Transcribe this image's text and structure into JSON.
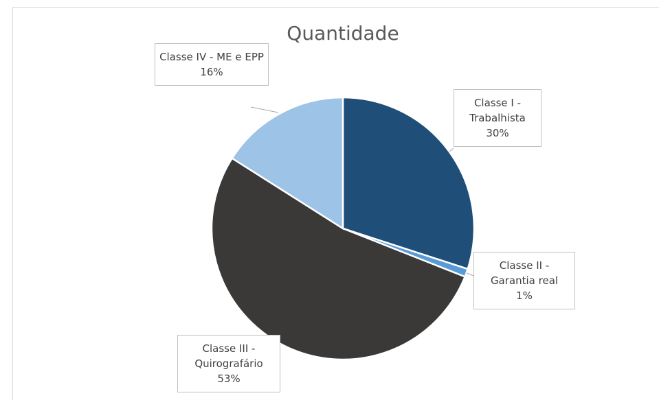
{
  "chart_data": {
    "type": "pie",
    "title": "Quantidade",
    "categories": [
      "Classe I - Trabalhista",
      "Classe II - Garantia real",
      "Classe III - Quirografário",
      "Classe IV - ME e EPP"
    ],
    "values": [
      30,
      1,
      53,
      16
    ],
    "value_labels": [
      "30%",
      "1%",
      "53%",
      "16%"
    ],
    "colors": [
      "#1f4e79",
      "#5b9bd5",
      "#3b3838",
      "#9dc3e6"
    ]
  }
}
